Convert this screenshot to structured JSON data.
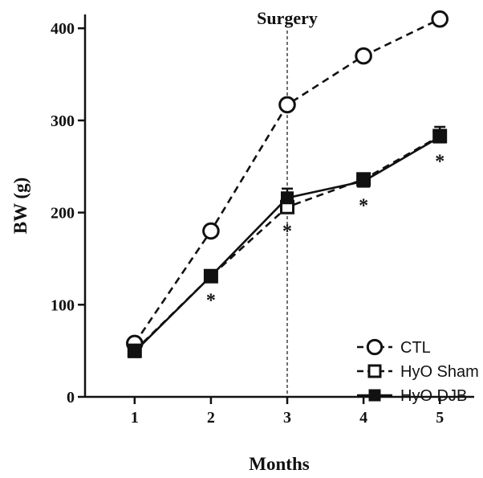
{
  "chart_data": {
    "type": "line",
    "title": "",
    "xlabel": "Months",
    "ylabel": "BW (g)",
    "x": [
      1,
      2,
      3,
      4,
      5
    ],
    "xticks": [
      "1",
      "2",
      "3",
      "4",
      "5"
    ],
    "yticks": [
      "0",
      "100",
      "200",
      "300",
      "400"
    ],
    "ytick_values": [
      0,
      100,
      200,
      300,
      400
    ],
    "xlim": [
      0.35,
      5.45
    ],
    "ylim": [
      0,
      415
    ],
    "annotation": {
      "label": "Surgery",
      "x": 3
    },
    "significance_marker": "*",
    "significance_x": [
      2,
      3,
      4,
      5
    ],
    "legend_position": "bottom-right",
    "series": [
      {
        "name": "CTL",
        "marker": "open-circle",
        "line": "dashed",
        "values": [
          58,
          180,
          317,
          370,
          410
        ],
        "errors": [
          0,
          0,
          0,
          0,
          0
        ]
      },
      {
        "name": "HyO Sham",
        "marker": "open-square",
        "line": "dashed",
        "values": [
          50,
          131,
          206,
          236,
          283
        ],
        "errors": [
          0,
          0,
          0,
          0,
          0
        ]
      },
      {
        "name": "HyO DJB",
        "marker": "filled-square",
        "line": "solid",
        "values": [
          49,
          131,
          216,
          234,
          282
        ],
        "errors": [
          0,
          0,
          10,
          7,
          11
        ]
      }
    ]
  }
}
